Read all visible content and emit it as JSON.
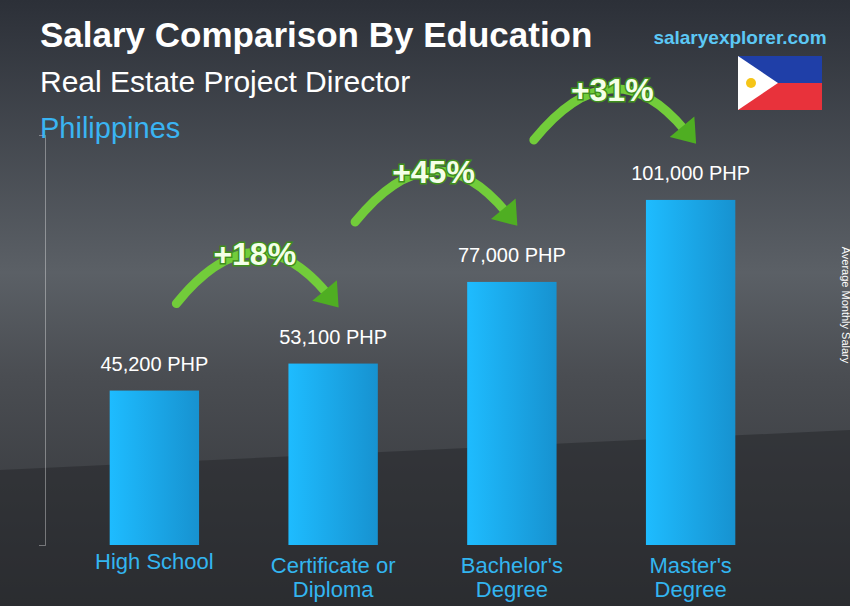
{
  "chart_data": {
    "type": "bar",
    "title": "Salary Comparison By Education",
    "subtitle": "Real Estate Project Director",
    "location": "Philippines",
    "source": "salaryexplorer.com",
    "ylabel": "Average Monthly Salary",
    "categories": [
      "High School",
      "Certificate or Diploma",
      "Bachelor's Degree",
      "Master's Degree"
    ],
    "values": [
      45200,
      53100,
      77000,
      101000
    ],
    "value_labels": [
      "45,200 PHP",
      "53,100 PHP",
      "77,000 PHP",
      "101,000 PHP"
    ],
    "annotations": [
      "+18%",
      "+45%",
      "+31%"
    ],
    "color": "#1aa3e8",
    "ylim": [
      0,
      120000
    ],
    "yticks": [],
    "data_labels": true,
    "tick_labels": "x",
    "grid": false
  }
}
